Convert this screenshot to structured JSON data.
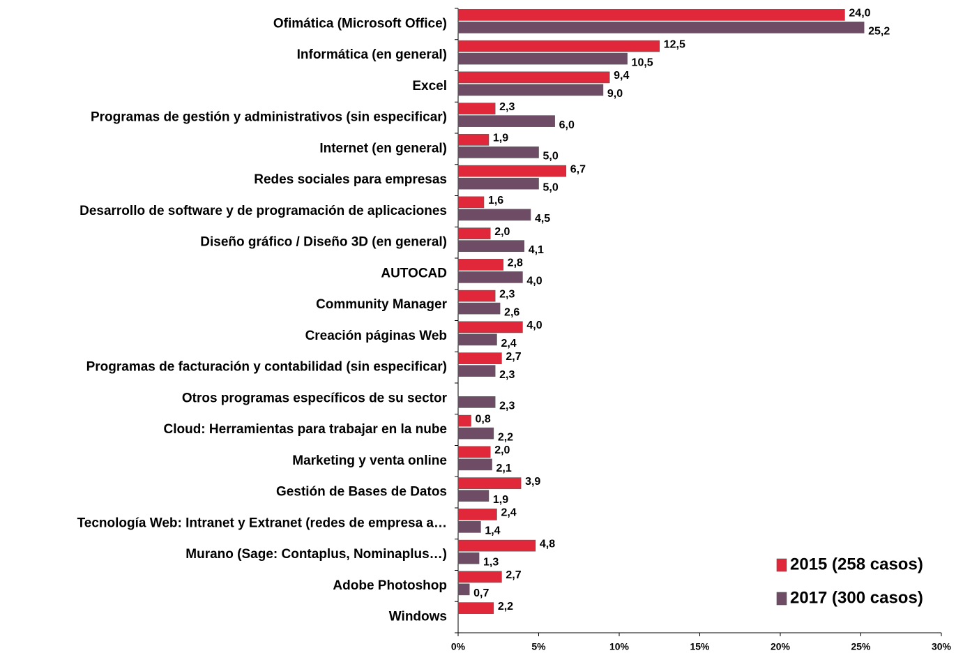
{
  "chart_data": {
    "type": "hbar",
    "categories": [
      "Ofimática (Microsoft Office)",
      "Informática (en general)",
      "Excel",
      "Programas de gestión y administrativos (sin especificar)",
      "Internet (en general)",
      "Redes sociales para empresas",
      "Desarrollo de software y de programación de aplicaciones",
      "Diseño gráfico / Diseño 3D (en general)",
      "AUTOCAD",
      "Community  Manager",
      "Creación páginas Web",
      "Programas de facturación y contabilidad (sin especificar)",
      "Otros programas específicos de su sector",
      "Cloud: Herramientas para trabajar en la nube",
      "Marketing y venta online",
      "Gestión de Bases de Datos",
      "Tecnología Web: Intranet y Extranet (redes de empresa a…",
      "Murano (Sage: Contaplus, Nominaplus…)",
      "Adobe Photoshop",
      "Windows"
    ],
    "series": [
      {
        "name": "2015 (258 casos)",
        "color": "#e0283a",
        "values": [
          24.0,
          12.5,
          9.4,
          2.3,
          1.9,
          6.7,
          1.6,
          2.0,
          2.8,
          2.3,
          4.0,
          2.7,
          null,
          0.8,
          2.0,
          3.9,
          2.4,
          4.8,
          2.7,
          2.2
        ],
        "value_labels": [
          "24,0",
          "12,5",
          "9,4",
          "2,3",
          "1,9",
          "6,7",
          "1,6",
          "2,0",
          "2,8",
          "2,3",
          "4,0",
          "2,7",
          null,
          "0,8",
          "2,0",
          "3,9",
          "2,4",
          "4,8",
          "2,7",
          "2,2"
        ]
      },
      {
        "name": "2017 (300 casos)",
        "color": "#6e4c66",
        "values": [
          25.2,
          10.5,
          9.0,
          6.0,
          5.0,
          5.0,
          4.5,
          4.1,
          4.0,
          2.6,
          2.4,
          2.3,
          2.3,
          2.2,
          2.1,
          1.9,
          1.4,
          1.3,
          0.7,
          null
        ],
        "value_labels": [
          "25,2",
          "10,5",
          "9,0",
          "6,0",
          "5,0",
          "5,0",
          "4,5",
          "4,1",
          "4,0",
          "2,6",
          "2,4",
          "2,3",
          "2,3",
          "2,2",
          "2,1",
          "1,9",
          "1,4",
          "1,3",
          "0,7",
          null
        ]
      }
    ],
    "xlim": [
      0,
      30
    ],
    "xticks": [
      {
        "value": 0,
        "label": "0%"
      },
      {
        "value": 5,
        "label": "5%"
      },
      {
        "value": 10,
        "label": "10%"
      },
      {
        "value": 15,
        "label": "15%"
      },
      {
        "value": 20,
        "label": "20%"
      },
      {
        "value": 25,
        "label": "25%"
      },
      {
        "value": 30,
        "label": "30%"
      }
    ],
    "legend": "lower right"
  }
}
